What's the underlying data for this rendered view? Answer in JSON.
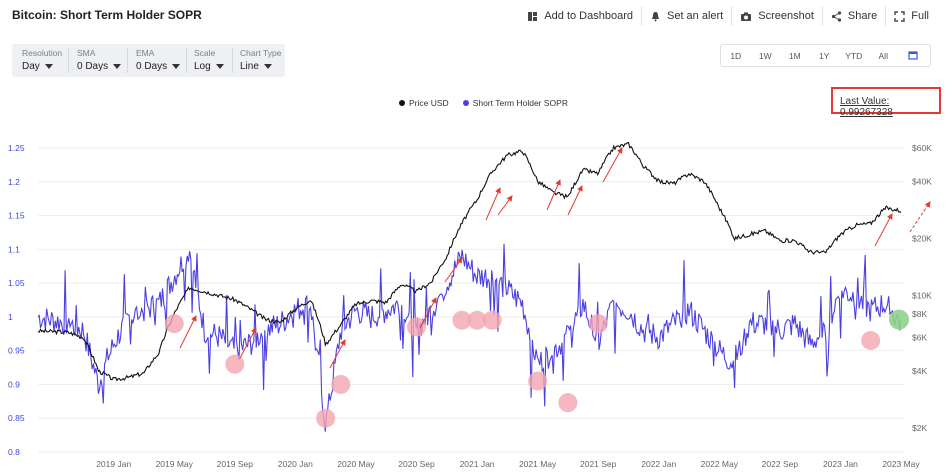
{
  "header": {
    "title": "Bitcoin: Short Term Holder SOPR",
    "actions": [
      {
        "label": "Add to Dashboard",
        "icon": "dashboard-icon"
      },
      {
        "label": "Set an alert",
        "icon": "bell-icon"
      },
      {
        "label": "Screenshot",
        "icon": "camera-icon"
      },
      {
        "label": "Share",
        "icon": "share-icon"
      },
      {
        "label": "Full",
        "icon": "fullscreen-icon"
      }
    ]
  },
  "controls": [
    {
      "label": "Resolution",
      "value": "Day"
    },
    {
      "label": "SMA",
      "value": "0 Days"
    },
    {
      "label": "EMA",
      "value": "0 Days"
    },
    {
      "label": "Scale",
      "value": "Log"
    },
    {
      "label": "Chart Type",
      "value": "Line"
    }
  ],
  "ranges": [
    "1D",
    "1W",
    "1M",
    "1Y",
    "YTD",
    "All"
  ],
  "last_value": "Last Value: 0.99267328",
  "colors": {
    "price": "#111111",
    "sopr": "#4b3fe0",
    "annotation_arrow": "#e53935",
    "circle_pink": "#f4a6b0",
    "circle_green": "#8fd18a"
  },
  "chart_data": {
    "type": "line",
    "legend": [
      "Price USD",
      "Short Term Holder SOPR"
    ],
    "x_ticks": [
      "2019 Jan",
      "2019 May",
      "2019 Sep",
      "2020 Jan",
      "2020 May",
      "2020 Sep",
      "2021 Jan",
      "2021 May",
      "2021 Sep",
      "2022 Jan",
      "2022 May",
      "2022 Sep",
      "2023 Jan",
      "2023 May"
    ],
    "y_left_ticks": [
      "1.25",
      "1.2",
      "1.15",
      "1.1",
      "1.05",
      "1",
      "0.95",
      "0.9",
      "0.85",
      "0.8"
    ],
    "y_right_ticks": [
      "$60K",
      "$40K",
      "$20K",
      "$10K",
      "$8K",
      "$6K",
      "$4K",
      "$2K"
    ],
    "ylim_left": [
      0.8,
      1.25
    ],
    "price_series": {
      "name": "Price USD",
      "x": [
        "2018-08",
        "2018-10",
        "2018-11",
        "2018-12",
        "2019-01",
        "2019-02",
        "2019-03",
        "2019-04",
        "2019-05",
        "2019-06",
        "2019-07",
        "2019-08",
        "2019-09",
        "2019-10",
        "2019-11",
        "2019-12",
        "2020-01",
        "2020-02",
        "2020-03",
        "2020-04",
        "2020-05",
        "2020-06",
        "2020-07",
        "2020-08",
        "2020-09",
        "2020-10",
        "2020-11",
        "2020-12",
        "2021-01",
        "2021-02",
        "2021-03",
        "2021-04",
        "2021-05",
        "2021-06",
        "2021-07",
        "2021-08",
        "2021-09",
        "2021-10",
        "2021-11",
        "2021-12",
        "2022-01",
        "2022-02",
        "2022-03",
        "2022-04",
        "2022-05",
        "2022-06",
        "2022-07",
        "2022-08",
        "2022-09",
        "2022-10",
        "2022-11",
        "2022-12",
        "2023-01",
        "2023-02",
        "2023-03",
        "2023-04",
        "2023-05"
      ],
      "values": [
        6500,
        6400,
        6000,
        4000,
        3600,
        3700,
        3900,
        5000,
        8000,
        11000,
        10500,
        10000,
        9500,
        8500,
        7500,
        7200,
        8500,
        9500,
        5500,
        7000,
        9000,
        9400,
        9200,
        11500,
        10500,
        11800,
        16000,
        24000,
        32000,
        45000,
        55000,
        58000,
        40000,
        35000,
        33000,
        46000,
        44000,
        60000,
        63000,
        48000,
        40000,
        39000,
        44000,
        40000,
        29000,
        20000,
        21000,
        22000,
        19500,
        19500,
        17000,
        16800,
        21000,
        23500,
        24000,
        29000,
        28000
      ]
    },
    "sopr_series": {
      "name": "Short Term Holder SOPR",
      "x": [
        "2018-08",
        "2018-10",
        "2018-11",
        "2018-12",
        "2019-01",
        "2019-02",
        "2019-03",
        "2019-04",
        "2019-05",
        "2019-06",
        "2019-07",
        "2019-08",
        "2019-09",
        "2019-10",
        "2019-11",
        "2019-12",
        "2020-01",
        "2020-02",
        "2020-03",
        "2020-04",
        "2020-05",
        "2020-06",
        "2020-07",
        "2020-08",
        "2020-09",
        "2020-10",
        "2020-11",
        "2020-12",
        "2021-01",
        "2021-02",
        "2021-03",
        "2021-04",
        "2021-05",
        "2021-06",
        "2021-07",
        "2021-08",
        "2021-09",
        "2021-10",
        "2021-11",
        "2021-12",
        "2022-01",
        "2022-02",
        "2022-03",
        "2022-04",
        "2022-05",
        "2022-06",
        "2022-07",
        "2022-08",
        "2022-09",
        "2022-10",
        "2022-11",
        "2022-12",
        "2023-01",
        "2023-02",
        "2023-03",
        "2023-04",
        "2023-05"
      ],
      "values": [
        1.0,
        0.99,
        0.98,
        0.9,
        0.96,
        1.0,
        1.01,
        1.02,
        1.06,
        1.1,
        0.98,
        0.97,
        0.95,
        0.96,
        0.98,
        0.99,
        1.01,
        1.02,
        0.84,
        0.98,
        1.01,
        1.0,
        1.01,
        1.02,
        0.98,
        1.01,
        1.05,
        1.09,
        1.06,
        1.06,
        1.04,
        1.02,
        0.93,
        0.95,
        0.97,
        1.02,
        0.96,
        1.02,
        1.01,
        0.98,
        0.97,
        0.99,
        1.01,
        0.98,
        0.95,
        0.93,
        0.99,
        0.99,
        0.98,
        0.99,
        0.96,
        0.98,
        1.04,
        1.03,
        1.01,
        1.02,
        0.99
      ]
    }
  }
}
